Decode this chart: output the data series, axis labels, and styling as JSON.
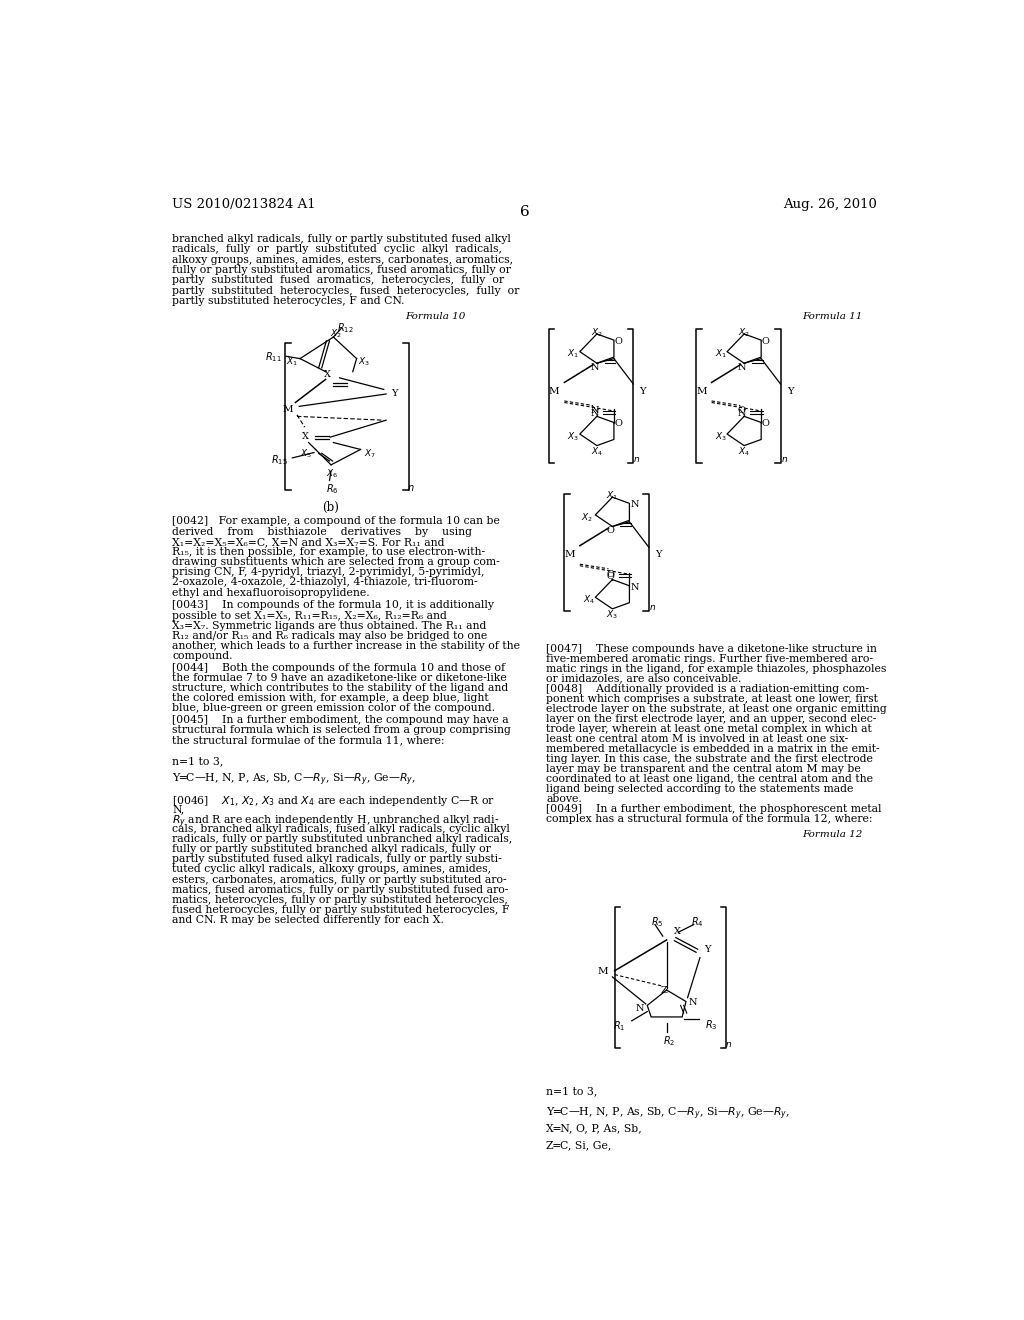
{
  "bg": "#ffffff",
  "header_left": "US 2010/0213824 A1",
  "header_center": "6",
  "header_right": "Aug. 26, 2010",
  "body_fs": 7.8,
  "small_fs": 7.0,
  "label_fs": 6.5
}
